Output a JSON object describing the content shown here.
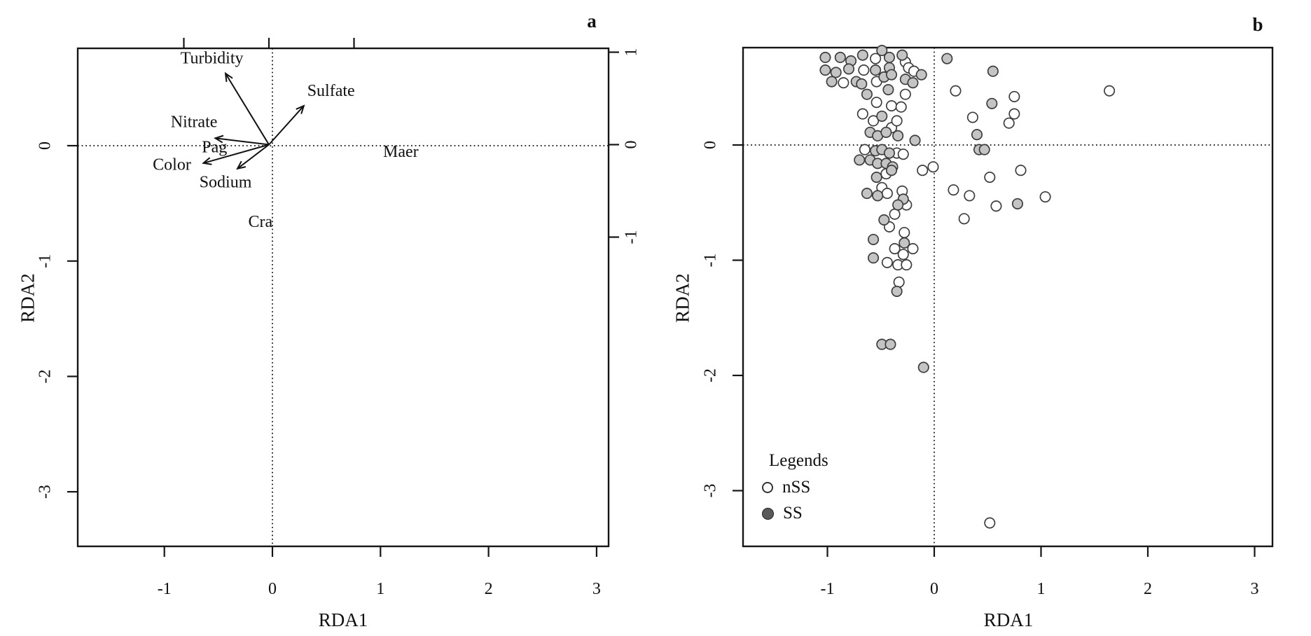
{
  "colors": {
    "ink": "#111111",
    "point_stroke": "#3d3d3d",
    "point_fill_nss": "#ffffff",
    "point_fill_ss": "#c4c4c4",
    "legend_ss_fill": "#595959",
    "background": "#ffffff"
  },
  "chart_data": [
    {
      "type": "scatter",
      "subtype": "rda-biplot-arrows",
      "panel_label": "a",
      "xlabel": "RDA1",
      "ylabel": "RDA2",
      "x_ticks": [
        -1,
        0,
        1,
        2,
        3
      ],
      "y_ticks": [
        0,
        -1,
        -2,
        -3
      ],
      "xlim": [
        -1.8,
        3.11
      ],
      "ylim": [
        -3.47,
        0.84
      ],
      "grid": false,
      "zero_lines": "dotted",
      "arrow_axis_note": "arrows and species labels use the unlabeled top axis and the right axis scale",
      "arrow_axis": {
        "top_ticks": [
          -1,
          0,
          1
        ],
        "right_ticks": [
          1,
          0,
          -1
        ]
      },
      "arrows": [
        {
          "name": "Turbidity",
          "x": -0.51,
          "y": 0.77,
          "label_x": -0.67,
          "label_y": 0.92
        },
        {
          "name": "Sulfate",
          "x": 0.41,
          "y": 0.42,
          "label_x": 0.73,
          "label_y": 0.57
        },
        {
          "name": "Nitrate",
          "x": -0.63,
          "y": 0.07,
          "label_x": -0.88,
          "label_y": 0.23
        },
        {
          "name": "Color",
          "x": -0.77,
          "y": -0.2,
          "label_x": -1.14,
          "label_y": -0.23
        },
        {
          "name": "Sodium",
          "x": -0.37,
          "y": -0.26,
          "label_x": -0.51,
          "label_y": -0.42
        }
      ],
      "species_labels": [
        {
          "name": "Pag",
          "x": -0.64,
          "y": -0.04
        },
        {
          "name": "Maer",
          "x": 1.55,
          "y": -0.09
        },
        {
          "name": "Cra",
          "x": -0.1,
          "y": -0.85
        }
      ]
    },
    {
      "type": "scatter",
      "panel_label": "b",
      "xlabel": "RDA1",
      "ylabel": "RDA2",
      "x_ticks": [
        -1,
        0,
        1,
        2,
        3
      ],
      "y_ticks": [
        0,
        -1,
        -2,
        -3
      ],
      "xlim": [
        -1.79,
        3.17
      ],
      "ylim": [
        -3.48,
        0.85
      ],
      "grid": false,
      "zero_lines": "dotted",
      "legend": {
        "title": "Legends",
        "items": [
          {
            "label": "nSS",
            "marker": "open"
          },
          {
            "label": "SS",
            "marker": "filled"
          }
        ]
      },
      "series": [
        {
          "name": "nSS",
          "marker": "open",
          "points": [
            [
              -0.55,
              0.75
            ],
            [
              -0.27,
              0.72
            ],
            [
              -0.66,
              0.65
            ],
            [
              -0.24,
              0.67
            ],
            [
              -0.19,
              0.64
            ],
            [
              -0.85,
              0.54
            ],
            [
              -0.54,
              0.55
            ],
            [
              1.64,
              0.47
            ],
            [
              -0.54,
              0.37
            ],
            [
              -0.4,
              0.34
            ],
            [
              -0.31,
              0.33
            ],
            [
              -0.27,
              0.44
            ],
            [
              0.2,
              0.47
            ],
            [
              0.75,
              0.42
            ],
            [
              -0.67,
              0.27
            ],
            [
              -0.57,
              0.21
            ],
            [
              -0.4,
              0.15
            ],
            [
              -0.35,
              0.21
            ],
            [
              0.36,
              0.24
            ],
            [
              0.75,
              0.27
            ],
            [
              0.7,
              0.19
            ],
            [
              -0.65,
              -0.04
            ],
            [
              -0.35,
              -0.07
            ],
            [
              -0.29,
              -0.08
            ],
            [
              -0.45,
              -0.25
            ],
            [
              -0.11,
              -0.22
            ],
            [
              -0.01,
              -0.19
            ],
            [
              0.81,
              -0.22
            ],
            [
              0.52,
              -0.28
            ],
            [
              -0.49,
              -0.37
            ],
            [
              -0.3,
              -0.4
            ],
            [
              0.18,
              -0.39
            ],
            [
              0.33,
              -0.44
            ],
            [
              0.58,
              -0.53
            ],
            [
              1.04,
              -0.45
            ],
            [
              0.28,
              -0.64
            ],
            [
              -0.44,
              -0.42
            ],
            [
              -0.26,
              -0.52
            ],
            [
              -0.37,
              -0.6
            ],
            [
              -0.42,
              -0.71
            ],
            [
              -0.28,
              -0.76
            ],
            [
              -0.37,
              -0.9
            ],
            [
              -0.2,
              -0.9
            ],
            [
              -0.29,
              -0.95
            ],
            [
              -0.44,
              -1.02
            ],
            [
              -0.34,
              -1.04
            ],
            [
              -0.26,
              -1.04
            ],
            [
              -0.33,
              -1.19
            ],
            [
              0.52,
              -3.28
            ]
          ]
        },
        {
          "name": "SS",
          "marker": "filled",
          "points": [
            [
              -1.02,
              0.76
            ],
            [
              -0.88,
              0.76
            ],
            [
              -0.78,
              0.73
            ],
            [
              -0.67,
              0.78
            ],
            [
              -0.49,
              0.82
            ],
            [
              -0.42,
              0.76
            ],
            [
              -0.3,
              0.78
            ],
            [
              -1.02,
              0.65
            ],
            [
              -0.92,
              0.63
            ],
            [
              -0.8,
              0.66
            ],
            [
              -0.55,
              0.65
            ],
            [
              -0.42,
              0.67
            ],
            [
              -0.12,
              0.61
            ],
            [
              -0.96,
              0.55
            ],
            [
              -0.73,
              0.55
            ],
            [
              -0.68,
              0.53
            ],
            [
              -0.47,
              0.59
            ],
            [
              -0.4,
              0.61
            ],
            [
              -0.27,
              0.57
            ],
            [
              -0.2,
              0.54
            ],
            [
              0.12,
              0.75
            ],
            [
              0.55,
              0.64
            ],
            [
              -0.63,
              0.44
            ],
            [
              -0.43,
              0.48
            ],
            [
              -0.49,
              0.25
            ],
            [
              0.54,
              0.36
            ],
            [
              -0.6,
              0.11
            ],
            [
              -0.53,
              0.08
            ],
            [
              -0.45,
              0.11
            ],
            [
              -0.34,
              0.08
            ],
            [
              -0.18,
              0.04
            ],
            [
              0.4,
              0.09
            ],
            [
              0.42,
              -0.04
            ],
            [
              0.47,
              -0.04
            ],
            [
              -0.55,
              -0.05
            ],
            [
              -0.49,
              -0.04
            ],
            [
              -0.42,
              -0.07
            ],
            [
              -0.7,
              -0.13
            ],
            [
              -0.6,
              -0.13
            ],
            [
              -0.53,
              -0.16
            ],
            [
              -0.45,
              -0.16
            ],
            [
              -0.39,
              -0.19
            ],
            [
              -0.54,
              -0.28
            ],
            [
              -0.4,
              -0.22
            ],
            [
              0.78,
              -0.51
            ],
            [
              -0.63,
              -0.42
            ],
            [
              -0.53,
              -0.44
            ],
            [
              -0.29,
              -0.47
            ],
            [
              -0.34,
              -0.52
            ],
            [
              -0.47,
              -0.65
            ],
            [
              -0.57,
              -0.82
            ],
            [
              -0.28,
              -0.85
            ],
            [
              -0.57,
              -0.98
            ],
            [
              -0.35,
              -1.27
            ],
            [
              -0.49,
              -1.73
            ],
            [
              -0.41,
              -1.73
            ],
            [
              -0.1,
              -1.93
            ]
          ]
        }
      ]
    }
  ]
}
